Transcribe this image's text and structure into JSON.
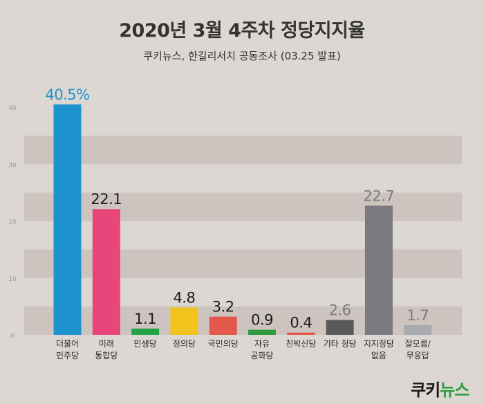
{
  "title": "2020년 3월 4주차 정당지지율",
  "subtitle": "쿠키뉴스, 한길리서치 공동조사 (03.25 발표)",
  "logo": {
    "part1": "쿠키",
    "part2": "뉴스"
  },
  "chart_data": {
    "type": "bar",
    "title": "2020년 3월 4주차 정당지지율",
    "subtitle": "쿠키뉴스, 한길리서치 공동조사 (03.25 발표)",
    "xlabel": "",
    "ylabel": "",
    "ylim": [
      0,
      40
    ],
    "yticks": [
      0,
      10,
      20,
      30,
      40
    ],
    "grid": "horizontal bands",
    "legend": "none",
    "categories": [
      [
        "더불어",
        "민주당"
      ],
      [
        "미래",
        "통합당"
      ],
      [
        "민생당"
      ],
      [
        "정의당"
      ],
      [
        "국민의당"
      ],
      [
        "자유",
        "공화당"
      ],
      [
        "친박신당"
      ],
      [
        "기타 정당"
      ],
      [
        "지지정당",
        "없음"
      ],
      [
        "잘모름/",
        "무응답"
      ]
    ],
    "values": [
      40.5,
      22.1,
      1.1,
      4.8,
      3.2,
      0.9,
      0.4,
      2.6,
      22.7,
      1.7
    ],
    "value_labels": [
      "40.5%",
      "22.1",
      "1.1",
      "4.8",
      "3.2",
      "0.9",
      "0.4",
      "2.6",
      "22.7",
      "1.7"
    ],
    "colors": [
      "#1f93cf",
      "#e8457a",
      "#24a346",
      "#f2c31d",
      "#e2584b",
      "#2e9b3e",
      "#e2584b",
      "#5a5858",
      "#7a7a7f",
      "#a9a9b0"
    ],
    "label_colors": [
      "#1f93cf",
      "#1a1a1a",
      "#1a1a1a",
      "#1a1a1a",
      "#1a1a1a",
      "#1a1a1a",
      "#1a1a1a",
      "#7a7a7f",
      "#7a7a7f",
      "#7a7a7f"
    ],
    "band_color": "#cdc4bf"
  }
}
